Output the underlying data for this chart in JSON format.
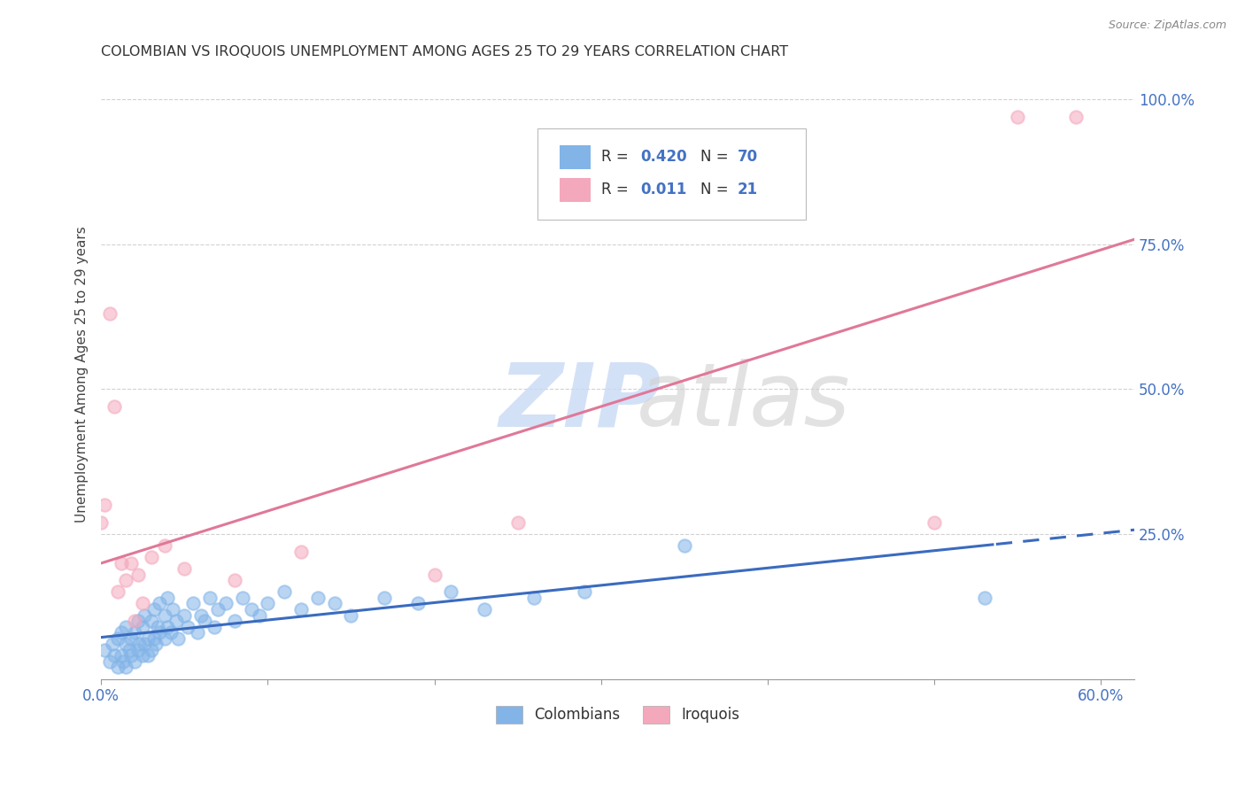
{
  "title": "COLOMBIAN VS IROQUOIS UNEMPLOYMENT AMONG AGES 25 TO 29 YEARS CORRELATION CHART",
  "source": "Source: ZipAtlas.com",
  "ylabel": "Unemployment Among Ages 25 to 29 years",
  "xlim": [
    0.0,
    0.62
  ],
  "ylim": [
    0.0,
    1.05
  ],
  "xtick_positions": [
    0.0,
    0.1,
    0.2,
    0.3,
    0.4,
    0.5,
    0.6
  ],
  "xticklabels": [
    "0.0%",
    "",
    "",
    "",
    "",
    "",
    "60.0%"
  ],
  "ytick_positions": [
    0.0,
    0.25,
    0.5,
    0.75,
    1.0
  ],
  "yticklabels": [
    "",
    "25.0%",
    "50.0%",
    "75.0%",
    "100.0%"
  ],
  "col_color": "#82b4e8",
  "iro_color": "#f4a8bc",
  "col_line_color": "#3a6bbf",
  "iro_line_color": "#e07898",
  "grid_color": "#cccccc",
  "bg_color": "#ffffff",
  "legend_r1": "0.420",
  "legend_n1": "70",
  "legend_r2": "0.011",
  "legend_n2": "21",
  "legend_value_color": "#4472c4",
  "colombian_x": [
    0.002,
    0.005,
    0.007,
    0.008,
    0.01,
    0.01,
    0.012,
    0.012,
    0.013,
    0.015,
    0.015,
    0.015,
    0.017,
    0.018,
    0.018,
    0.02,
    0.02,
    0.022,
    0.022,
    0.023,
    0.025,
    0.025,
    0.026,
    0.026,
    0.028,
    0.028,
    0.03,
    0.03,
    0.032,
    0.032,
    0.033,
    0.034,
    0.035,
    0.035,
    0.038,
    0.038,
    0.04,
    0.04,
    0.042,
    0.043,
    0.045,
    0.046,
    0.05,
    0.052,
    0.055,
    0.058,
    0.06,
    0.062,
    0.065,
    0.068,
    0.07,
    0.075,
    0.08,
    0.085,
    0.09,
    0.095,
    0.1,
    0.11,
    0.12,
    0.13,
    0.14,
    0.15,
    0.17,
    0.19,
    0.21,
    0.23,
    0.26,
    0.29,
    0.35,
    0.53
  ],
  "colombian_y": [
    0.05,
    0.03,
    0.06,
    0.04,
    0.02,
    0.07,
    0.04,
    0.08,
    0.03,
    0.06,
    0.02,
    0.09,
    0.05,
    0.07,
    0.04,
    0.03,
    0.08,
    0.05,
    0.1,
    0.06,
    0.04,
    0.09,
    0.06,
    0.11,
    0.07,
    0.04,
    0.05,
    0.1,
    0.07,
    0.12,
    0.06,
    0.09,
    0.08,
    0.13,
    0.07,
    0.11,
    0.09,
    0.14,
    0.08,
    0.12,
    0.1,
    0.07,
    0.11,
    0.09,
    0.13,
    0.08,
    0.11,
    0.1,
    0.14,
    0.09,
    0.12,
    0.13,
    0.1,
    0.14,
    0.12,
    0.11,
    0.13,
    0.15,
    0.12,
    0.14,
    0.13,
    0.11,
    0.14,
    0.13,
    0.15,
    0.12,
    0.14,
    0.15,
    0.23,
    0.14
  ],
  "iroquois_x": [
    0.0,
    0.002,
    0.005,
    0.008,
    0.01,
    0.012,
    0.015,
    0.018,
    0.02,
    0.022,
    0.025,
    0.03,
    0.038,
    0.05,
    0.08,
    0.12,
    0.2,
    0.25,
    0.5,
    0.55,
    0.585
  ],
  "iroquois_y": [
    0.27,
    0.3,
    0.63,
    0.47,
    0.15,
    0.2,
    0.17,
    0.2,
    0.1,
    0.18,
    0.13,
    0.21,
    0.23,
    0.19,
    0.17,
    0.22,
    0.18,
    0.27,
    0.27,
    0.97,
    0.97
  ]
}
